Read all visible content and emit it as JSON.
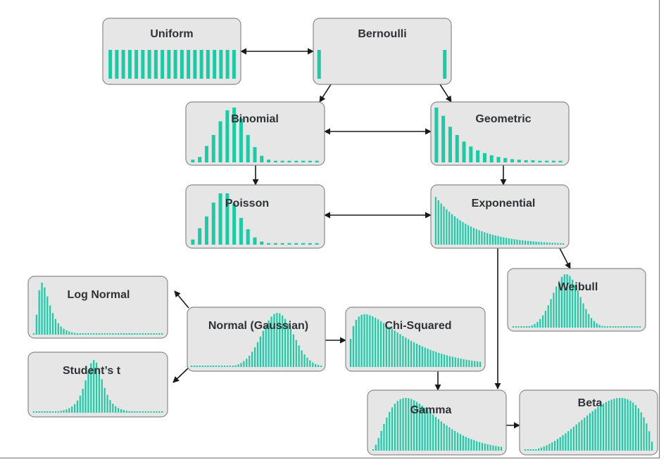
{
  "diagram": {
    "accent_color": "#1ec9a6",
    "box_color": "#e6e6e6",
    "nodes": [
      {
        "id": "uniform",
        "label": "Uniform",
        "kind": "pmf",
        "values": [
          1,
          1,
          1,
          1,
          1,
          1,
          1,
          1,
          1,
          1,
          1,
          1,
          1,
          1,
          1,
          1,
          1,
          1,
          1,
          1
        ]
      },
      {
        "id": "bernoulli",
        "label": "Bernoulli",
        "kind": "pmf",
        "values": [
          1,
          0,
          0,
          0,
          0,
          0,
          0,
          0,
          0,
          0,
          0,
          0,
          0,
          0,
          0,
          0,
          0,
          0,
          0,
          0,
          0,
          1
        ]
      },
      {
        "id": "binomial",
        "label": "Binomial",
        "kind": "pmf",
        "values": [
          0.05,
          0.1,
          0.3,
          0.5,
          0.75,
          0.95,
          1,
          0.8,
          0.5,
          0.28,
          0.12,
          0.05,
          0.03,
          0.03,
          0.03,
          0.03,
          0.03,
          0.03,
          0.03
        ]
      },
      {
        "id": "geometric",
        "label": "Geometric",
        "kind": "pmf",
        "values": [
          1,
          0.85,
          0.65,
          0.5,
          0.38,
          0.29,
          0.22,
          0.17,
          0.13,
          0.1,
          0.08,
          0.06,
          0.05,
          0.04,
          0.04,
          0.03,
          0.03,
          0.03,
          0.03
        ]
      },
      {
        "id": "poisson",
        "label": "Poisson",
        "kind": "pmf",
        "values": [
          0.1,
          0.32,
          0.55,
          0.82,
          1,
          1,
          0.8,
          0.52,
          0.3,
          0.14,
          0.06,
          0.03,
          0.03,
          0.03,
          0.03,
          0.03,
          0.03,
          0.03,
          0.03
        ]
      },
      {
        "id": "exponential",
        "label": "Exponential",
        "kind": "pdf",
        "shape": "exponential"
      },
      {
        "id": "weibull",
        "label": "Weibull",
        "kind": "pdf",
        "shape": "weibull"
      },
      {
        "id": "lognormal",
        "label": "Log Normal",
        "kind": "pdf",
        "shape": "lognormal"
      },
      {
        "id": "normal",
        "label": "Normal (Gaussian)",
        "kind": "pdf",
        "shape": "normal"
      },
      {
        "id": "chisquared",
        "label": "Chi-Squared",
        "kind": "pdf",
        "shape": "chisquared"
      },
      {
        "id": "studentt",
        "label": "Student’s t",
        "kind": "pdf",
        "shape": "studentt"
      },
      {
        "id": "gamma",
        "label": "Gamma",
        "kind": "pdf",
        "shape": "gamma"
      },
      {
        "id": "beta",
        "label": "Beta",
        "kind": "pdf",
        "shape": "beta"
      }
    ],
    "edges": [
      {
        "from": "uniform",
        "to": "bernoulli",
        "bidirectional": true
      },
      {
        "from": "bernoulli",
        "to": "binomial",
        "bidirectional": false
      },
      {
        "from": "bernoulli",
        "to": "geometric",
        "bidirectional": false
      },
      {
        "from": "binomial",
        "to": "geometric",
        "bidirectional": true
      },
      {
        "from": "binomial",
        "to": "poisson",
        "bidirectional": false
      },
      {
        "from": "geometric",
        "to": "exponential",
        "bidirectional": false
      },
      {
        "from": "poisson",
        "to": "exponential",
        "bidirectional": true
      },
      {
        "from": "exponential",
        "to": "weibull",
        "bidirectional": false
      },
      {
        "from": "exponential",
        "to": "gamma",
        "bidirectional": false
      },
      {
        "from": "normal",
        "to": "lognormal",
        "bidirectional": false
      },
      {
        "from": "normal",
        "to": "studentt",
        "bidirectional": false
      },
      {
        "from": "normal",
        "to": "chisquared",
        "bidirectional": false
      },
      {
        "from": "chisquared",
        "to": "gamma",
        "bidirectional": false
      },
      {
        "from": "gamma",
        "to": "beta",
        "bidirectional": false
      }
    ]
  }
}
